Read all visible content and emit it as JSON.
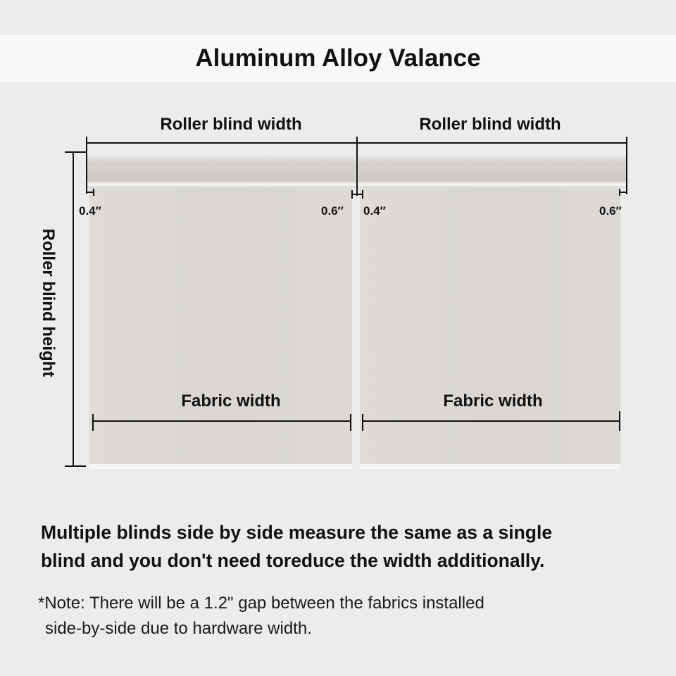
{
  "title": "Aluminum Alloy Valance",
  "labels": {
    "roller_width_left": "Roller blind width",
    "roller_width_right": "Roller blind width",
    "roller_height": "Roller blind height",
    "fabric_width_left": "Fabric width",
    "fabric_width_right": "Fabric width",
    "offset_left_1": "0.4″",
    "offset_right_1": "0.6″",
    "offset_left_2": "0.4″",
    "offset_right_2": "0.6″"
  },
  "statement": {
    "line1": "Multiple blinds side by side measure the same as a single",
    "line2": "blind and you don't need toreduce the width additionally."
  },
  "note": {
    "line1": "*Note: There will be a 1.2\" gap between the fabrics installed",
    "line2": "side-by-side due to hardware width."
  },
  "colors": {
    "background": "#ececea",
    "fabric": "#dcd9d6",
    "line": "#111111"
  }
}
